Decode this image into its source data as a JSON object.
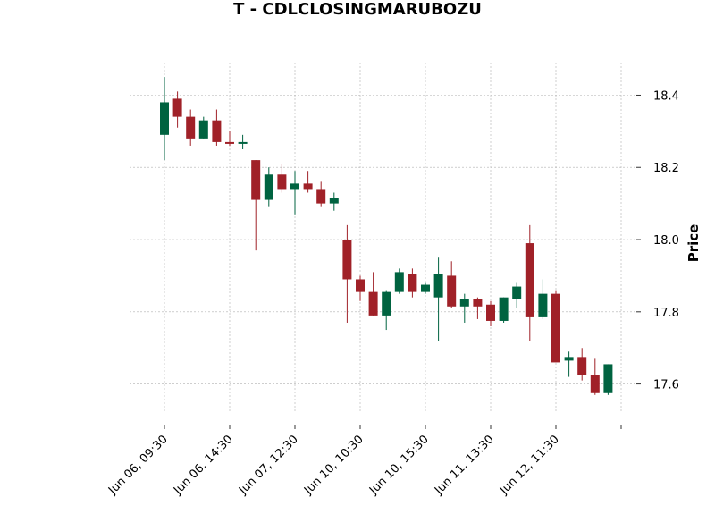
{
  "chart_data": {
    "type": "candlestick",
    "title": "T - CDLCLOSINGMARUBOZU",
    "xlabel": "",
    "ylabel": "Price",
    "ylim": [
      17.52,
      18.49
    ],
    "y_ticks": [
      17.6,
      17.8,
      18.0,
      18.2,
      18.4
    ],
    "y_tick_labels": [
      "17.6",
      "17.8",
      "18.0",
      "18.2",
      "18.4"
    ],
    "x_tick_labels": [
      "Jun 06, 09:30",
      "Jun 06, 14:30",
      "Jun 07, 12:30",
      "Jun 10, 10:30",
      "Jun 10, 15:30",
      "Jun 11, 13:30",
      "Jun 12, 11:30"
    ],
    "x_tick_every": 5,
    "grid": true,
    "colors": {
      "up": "#006340",
      "down": "#a02128"
    },
    "candles": [
      {
        "o": 18.29,
        "h": 18.45,
        "l": 18.22,
        "c": 18.38
      },
      {
        "o": 18.39,
        "h": 18.41,
        "l": 18.31,
        "c": 18.34
      },
      {
        "o": 18.34,
        "h": 18.36,
        "l": 18.26,
        "c": 18.28
      },
      {
        "o": 18.28,
        "h": 18.34,
        "l": 18.28,
        "c": 18.33
      },
      {
        "o": 18.33,
        "h": 18.36,
        "l": 18.26,
        "c": 18.27
      },
      {
        "o": 18.27,
        "h": 18.3,
        "l": 18.26,
        "c": 18.265
      },
      {
        "o": 18.265,
        "h": 18.29,
        "l": 18.25,
        "c": 18.27
      },
      {
        "o": 18.22,
        "h": 18.22,
        "l": 17.97,
        "c": 18.11
      },
      {
        "o": 18.11,
        "h": 18.2,
        "l": 18.09,
        "c": 18.18
      },
      {
        "o": 18.18,
        "h": 18.21,
        "l": 18.13,
        "c": 18.14
      },
      {
        "o": 18.14,
        "h": 18.19,
        "l": 18.07,
        "c": 18.155
      },
      {
        "o": 18.155,
        "h": 18.19,
        "l": 18.13,
        "c": 18.14
      },
      {
        "o": 18.14,
        "h": 18.16,
        "l": 18.09,
        "c": 18.1
      },
      {
        "o": 18.1,
        "h": 18.13,
        "l": 18.08,
        "c": 18.115
      },
      {
        "o": 18.0,
        "h": 18.04,
        "l": 17.77,
        "c": 17.89
      },
      {
        "o": 17.89,
        "h": 17.9,
        "l": 17.83,
        "c": 17.855
      },
      {
        "o": 17.855,
        "h": 17.91,
        "l": 17.79,
        "c": 17.79
      },
      {
        "o": 17.79,
        "h": 17.86,
        "l": 17.75,
        "c": 17.855
      },
      {
        "o": 17.855,
        "h": 17.92,
        "l": 17.85,
        "c": 17.91
      },
      {
        "o": 17.905,
        "h": 17.92,
        "l": 17.84,
        "c": 17.855
      },
      {
        "o": 17.855,
        "h": 17.88,
        "l": 17.85,
        "c": 17.875
      },
      {
        "o": 17.84,
        "h": 17.95,
        "l": 17.72,
        "c": 17.905
      },
      {
        "o": 17.9,
        "h": 17.94,
        "l": 17.81,
        "c": 17.815
      },
      {
        "o": 17.815,
        "h": 17.85,
        "l": 17.77,
        "c": 17.835
      },
      {
        "o": 17.835,
        "h": 17.84,
        "l": 17.78,
        "c": 17.815
      },
      {
        "o": 17.82,
        "h": 17.83,
        "l": 17.76,
        "c": 17.775
      },
      {
        "o": 17.775,
        "h": 17.84,
        "l": 17.77,
        "c": 17.84
      },
      {
        "o": 17.835,
        "h": 17.88,
        "l": 17.81,
        "c": 17.87
      },
      {
        "o": 17.99,
        "h": 18.04,
        "l": 17.72,
        "c": 17.785
      },
      {
        "o": 17.785,
        "h": 17.89,
        "l": 17.78,
        "c": 17.85
      },
      {
        "o": 17.85,
        "h": 17.86,
        "l": 17.66,
        "c": 17.66
      },
      {
        "o": 17.665,
        "h": 17.69,
        "l": 17.62,
        "c": 17.675
      },
      {
        "o": 17.675,
        "h": 17.7,
        "l": 17.61,
        "c": 17.625
      },
      {
        "o": 17.625,
        "h": 17.67,
        "l": 17.57,
        "c": 17.575
      },
      {
        "o": 17.575,
        "h": 17.655,
        "l": 17.57,
        "c": 17.655
      }
    ]
  }
}
